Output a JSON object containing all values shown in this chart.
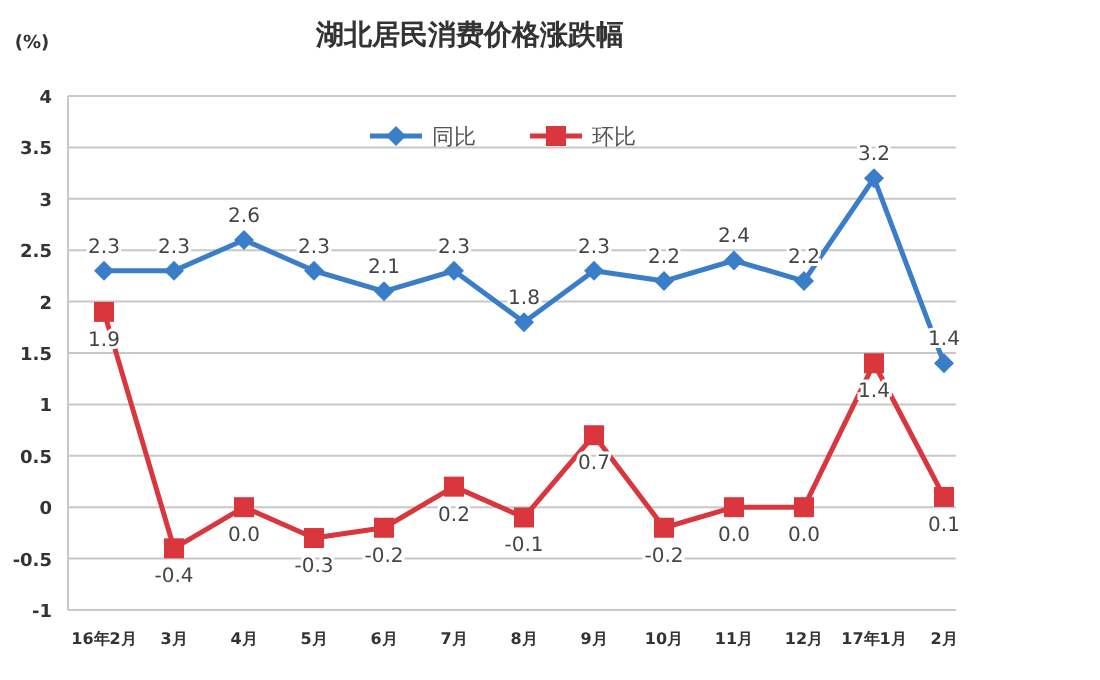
{
  "chart_data": {
    "type": "line",
    "title": "湖北居民消费价格涨跌幅",
    "ylabel": "(%)",
    "categories": [
      "16年2月",
      "3月",
      "4月",
      "5月",
      "6月",
      "7月",
      "8月",
      "9月",
      "10月",
      "11月",
      "12月",
      "17年1月",
      "2月"
    ],
    "series": [
      {
        "name": "同比",
        "color": "#3a7dc9",
        "marker": "diamond",
        "values": [
          2.3,
          2.3,
          2.6,
          2.3,
          2.1,
          2.3,
          1.8,
          2.3,
          2.2,
          2.4,
          2.2,
          3.2,
          1.4
        ],
        "value_labels": [
          "2.3",
          "2.3",
          "2.6",
          "2.3",
          "2.1",
          "2.3",
          "1.8",
          "2.3",
          "2.2",
          "2.4",
          "2.2",
          "3.2",
          "1.4"
        ]
      },
      {
        "name": "环比",
        "color": "#d9363e",
        "marker": "square",
        "values": [
          1.9,
          -0.4,
          0.0,
          -0.3,
          -0.2,
          0.2,
          -0.1,
          0.7,
          -0.2,
          0.0,
          0.0,
          1.4,
          0.1
        ],
        "value_labels": [
          "1.9",
          "-0.4",
          "0.0",
          "-0.3",
          "-0.2",
          "0.2",
          "-0.1",
          "0.7",
          "-0.2",
          "0.0",
          "0.0",
          "1.4",
          "0.1"
        ]
      }
    ],
    "ylim": [
      -1,
      4
    ],
    "yticks": [
      -1,
      -0.5,
      0,
      0.5,
      1,
      1.5,
      2,
      2.5,
      3,
      3.5,
      4
    ],
    "grid": "y",
    "legend": "top",
    "line_style": "solid"
  }
}
